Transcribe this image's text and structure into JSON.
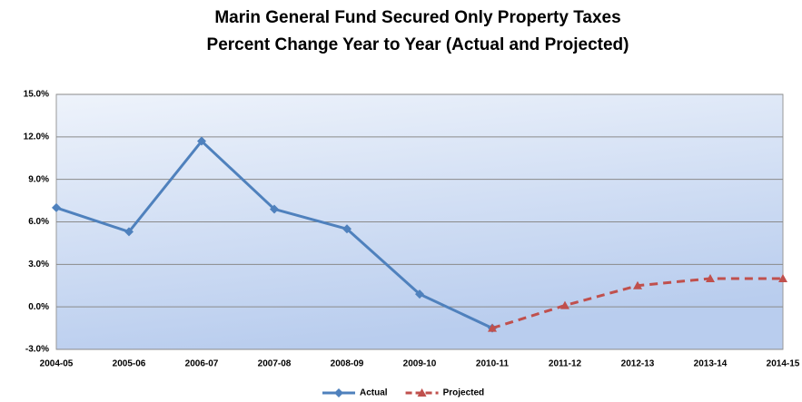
{
  "chart_data": {
    "type": "line",
    "title": "Marin General Fund Secured Only Property Taxes",
    "subtitle": "Percent Change Year to Year (Actual and Projected)",
    "categories": [
      "2004-05",
      "2005-06",
      "2006-07",
      "2007-08",
      "2008-09",
      "2009-10",
      "2010-11",
      "2011-12",
      "2012-13",
      "2013-14",
      "2014-15"
    ],
    "series": [
      {
        "name": "Actual",
        "color": "#4f81bd",
        "values": [
          7.0,
          5.3,
          11.7,
          6.9,
          5.5,
          0.9,
          -1.5,
          null,
          null,
          null,
          null
        ]
      },
      {
        "name": "Projected",
        "color": "#c0504d",
        "values": [
          null,
          null,
          null,
          null,
          null,
          null,
          -1.5,
          0.1,
          1.5,
          2.0,
          2.0
        ]
      }
    ],
    "ylim": [
      -3,
      15
    ],
    "yticks": [
      {
        "value": -3,
        "label": "-3.0%"
      },
      {
        "value": 0,
        "label": "0.0%"
      },
      {
        "value": 3,
        "label": "3.0%"
      },
      {
        "value": 6,
        "label": "6.0%"
      },
      {
        "value": 9,
        "label": "9.0%"
      },
      {
        "value": 12,
        "label": "12.0%"
      },
      {
        "value": 15,
        "label": "15.0%"
      }
    ],
    "grid": true,
    "legend": "bottom"
  }
}
